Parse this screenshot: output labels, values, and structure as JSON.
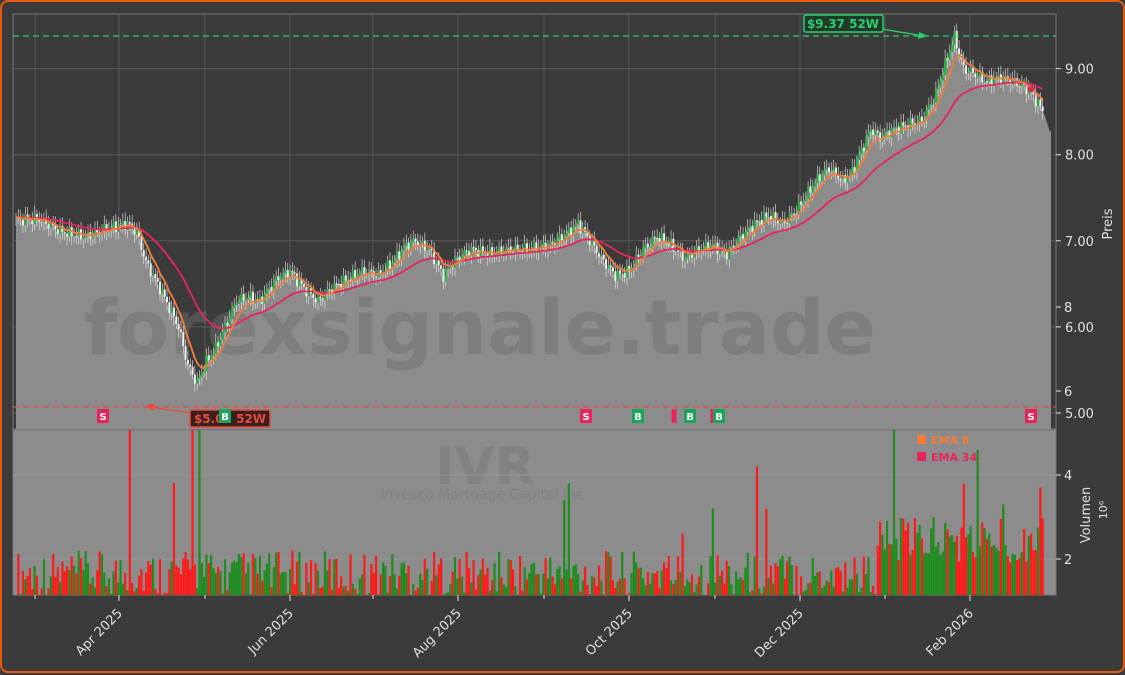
{
  "colors": {
    "background": "#3b3b3b",
    "frame_border": "#e8590c",
    "area_fill": "#8c8c8c",
    "ema8": "#f07d3c",
    "ema34": "#e8245c",
    "up_volume": "#1e8c1e",
    "down_volume": "#ff1a1a",
    "high_line": "#2ecc71",
    "low_line": "#e74c3c",
    "signal_sell": "#e8245c",
    "signal_buy": "#1aa55a"
  },
  "chart_data": [
    {
      "type": "line",
      "panel": "price",
      "ylabel": "Preis",
      "ylim": [
        4.95,
        9.62
      ],
      "yticks": [
        "5.00",
        "6.00",
        "7.00",
        "8.00",
        "9.00"
      ],
      "xticks": [
        "Apr 2025",
        "Jun 2025",
        "Aug 2025",
        "Oct 2025",
        "Dec 2025",
        "Feb 2026"
      ],
      "watermark": "forexsignale.trade",
      "grid": true,
      "annotations": {
        "high_label": "$9.37 52W",
        "high_value": 9.37,
        "low_label": "$5.07 52W",
        "low_value": 5.07
      },
      "legend": {
        "position": "right",
        "entries": [
          "EMA 8",
          "EMA 34"
        ]
      },
      "price_keypoints": [
        [
          0,
          7.25
        ],
        [
          10,
          7.25
        ],
        [
          20,
          7.1
        ],
        [
          30,
          7.05
        ],
        [
          40,
          7.15
        ],
        [
          48,
          7.2
        ],
        [
          52,
          7.1
        ],
        [
          56,
          6.75
        ],
        [
          62,
          6.45
        ],
        [
          70,
          6.0
        ],
        [
          74,
          5.55
        ],
        [
          78,
          5.35
        ],
        [
          82,
          5.6
        ],
        [
          86,
          5.75
        ],
        [
          90,
          6.0
        ],
        [
          95,
          6.3
        ],
        [
          100,
          6.35
        ],
        [
          105,
          6.3
        ],
        [
          112,
          6.55
        ],
        [
          118,
          6.65
        ],
        [
          124,
          6.45
        ],
        [
          130,
          6.3
        ],
        [
          136,
          6.45
        ],
        [
          142,
          6.55
        ],
        [
          150,
          6.65
        ],
        [
          156,
          6.6
        ],
        [
          162,
          6.75
        ],
        [
          168,
          6.95
        ],
        [
          172,
          7.0
        ],
        [
          178,
          6.9
        ],
        [
          184,
          6.6
        ],
        [
          190,
          6.8
        ],
        [
          196,
          6.9
        ],
        [
          205,
          6.85
        ],
        [
          212,
          6.9
        ],
        [
          220,
          6.9
        ],
        [
          230,
          6.95
        ],
        [
          238,
          7.1
        ],
        [
          242,
          7.2
        ],
        [
          246,
          7.05
        ],
        [
          252,
          6.8
        ],
        [
          258,
          6.6
        ],
        [
          264,
          6.65
        ],
        [
          270,
          6.9
        ],
        [
          276,
          7.05
        ],
        [
          282,
          6.95
        ],
        [
          288,
          6.8
        ],
        [
          294,
          6.9
        ],
        [
          300,
          6.95
        ],
        [
          306,
          6.85
        ],
        [
          312,
          7.05
        ],
        [
          318,
          7.2
        ],
        [
          324,
          7.3
        ],
        [
          330,
          7.2
        ],
        [
          336,
          7.35
        ],
        [
          342,
          7.6
        ],
        [
          346,
          7.75
        ],
        [
          350,
          7.85
        ],
        [
          356,
          7.7
        ],
        [
          360,
          7.8
        ],
        [
          364,
          8.05
        ],
        [
          368,
          8.3
        ],
        [
          372,
          8.2
        ],
        [
          378,
          8.3
        ],
        [
          384,
          8.35
        ],
        [
          390,
          8.4
        ],
        [
          396,
          8.7
        ],
        [
          400,
          9.05
        ],
        [
          404,
          9.37
        ],
        [
          408,
          9.0
        ],
        [
          412,
          8.95
        ],
        [
          418,
          8.85
        ],
        [
          424,
          8.9
        ],
        [
          430,
          8.85
        ],
        [
          436,
          8.75
        ],
        [
          440,
          8.6
        ],
        [
          443,
          8.45
        ],
        [
          445,
          8.27
        ]
      ]
    },
    {
      "type": "bar",
      "panel": "volume",
      "ylabel": "Volumen",
      "yunit": "10⁶",
      "ylim": [
        0.3,
        8.0
      ],
      "yticks": [
        "2",
        "4",
        "6",
        "8"
      ],
      "ticker": "IVR",
      "company": "Invesco Mortgage Capital Inc"
    },
    {
      "type": "signals",
      "panel": "price",
      "markers": [
        {
          "label": "S",
          "kind": "sell",
          "x": 101
        },
        {
          "label": "B",
          "kind": "buy",
          "x": 223
        },
        {
          "label": "S",
          "kind": "sell",
          "x": 584
        },
        {
          "label": "B",
          "kind": "buy",
          "x": 636
        },
        {
          "label": "",
          "kind": "sell",
          "x": 672
        },
        {
          "label": "B",
          "kind": "buy",
          "x": 688
        },
        {
          "label": "",
          "kind": "sell",
          "x": 711
        },
        {
          "label": "B",
          "kind": "buy",
          "x": 717
        },
        {
          "label": "S",
          "kind": "sell",
          "x": 1029
        }
      ]
    }
  ]
}
